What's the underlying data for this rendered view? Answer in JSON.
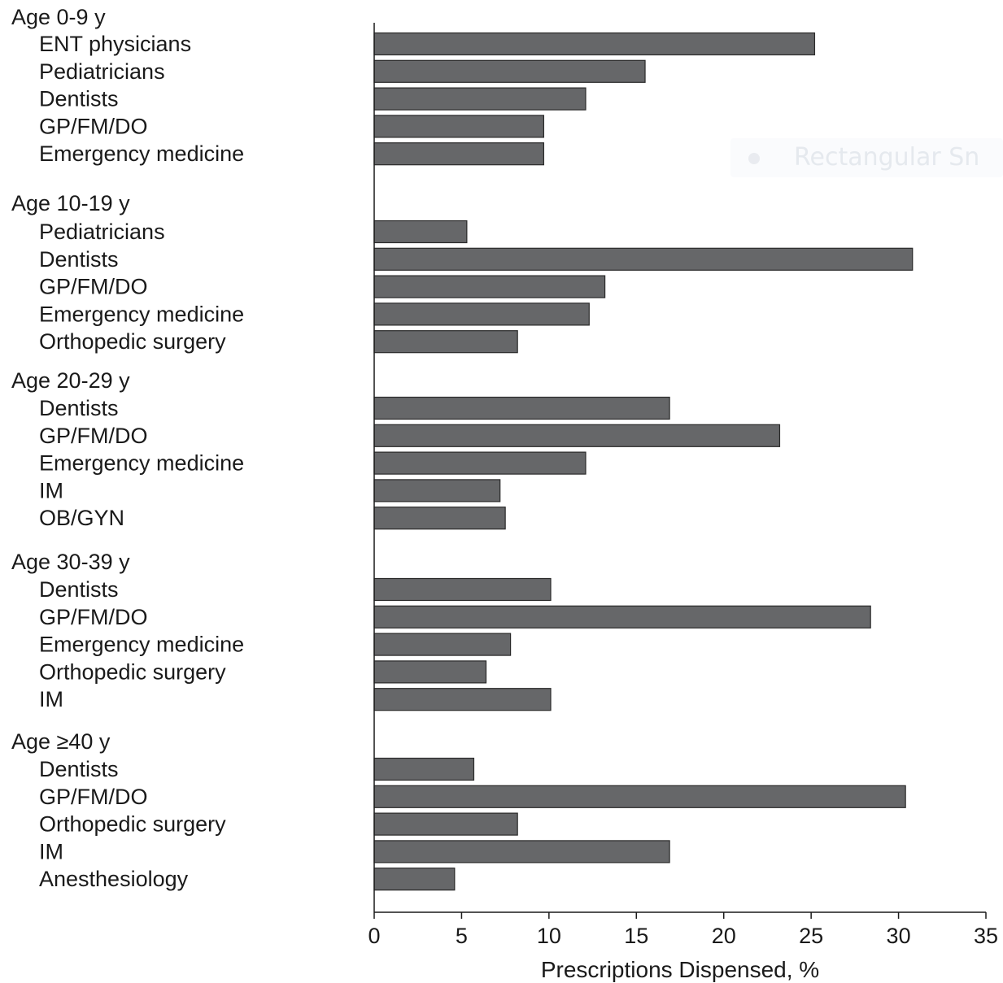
{
  "chart_data": {
    "type": "bar",
    "orientation": "horizontal",
    "xlabel": "Prescriptions Dispensed, %",
    "xlim": [
      0,
      35
    ],
    "xticks": [
      0,
      5,
      10,
      15,
      20,
      25,
      30,
      35
    ],
    "bar_color": "#666769",
    "groups": [
      {
        "label": "Age 0-9 y",
        "categories": [
          "ENT physicians",
          "Pediatricians",
          "Dentists",
          "GP/FM/DO",
          "Emergency medicine"
        ],
        "values": [
          25.2,
          15.5,
          12.1,
          9.7,
          9.7
        ]
      },
      {
        "label": "Age 10-19 y",
        "categories": [
          "Pediatricians",
          "Dentists",
          "GP/FM/DO",
          "Emergency medicine",
          "Orthopedic surgery"
        ],
        "values": [
          5.3,
          30.8,
          13.2,
          12.3,
          8.2
        ]
      },
      {
        "label": "Age 20-29 y",
        "categories": [
          "Dentists",
          "GP/FM/DO",
          "Emergency medicine",
          "IM",
          "OB/GYN"
        ],
        "values": [
          16.9,
          23.2,
          12.1,
          7.2,
          7.5
        ]
      },
      {
        "label": "Age 30-39 y",
        "categories": [
          "Dentists",
          "GP/FM/DO",
          "Emergency medicine",
          "Orthopedic surgery",
          "IM"
        ],
        "values": [
          10.1,
          28.4,
          7.8,
          6.4,
          10.1
        ]
      },
      {
        "label": "Age ≥40 y",
        "categories": [
          "Dentists",
          "GP/FM/DO",
          "Orthopedic surgery",
          "IM",
          "Anesthesiology"
        ],
        "values": [
          5.7,
          30.4,
          8.2,
          16.9,
          4.6
        ]
      }
    ]
  },
  "overlay": {
    "label": "Rectangular Sn"
  }
}
